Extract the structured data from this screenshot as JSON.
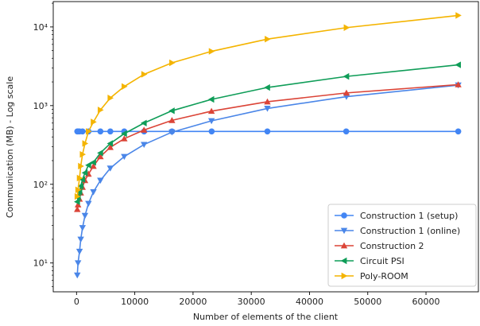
{
  "chart_data": {
    "type": "line",
    "xlabel": "Number of elements of the client",
    "ylabel": "Communication (MB) - Log scale",
    "yscale": "log",
    "xlim": [
      -4000,
      69000
    ],
    "ylim": [
      4.3,
      21000
    ],
    "xticks": [
      0,
      10000,
      20000,
      30000,
      40000,
      50000,
      60000
    ],
    "xtick_labels": [
      "0",
      "10000",
      "20000",
      "30000",
      "40000",
      "50000",
      "60000"
    ],
    "yticks": [
      10,
      100,
      1000,
      10000
    ],
    "ytick_labels": [
      "10¹",
      "10²",
      "10³",
      "10⁴"
    ],
    "legend_position": "lower-right",
    "grid": false,
    "series": [
      {
        "name": "Construction 1 (setup)",
        "color": "#4285f4",
        "marker": "circle",
        "x": [
          128,
          256,
          512,
          1024,
          2048,
          4096,
          5800,
          8192,
          11600,
          16384,
          23200,
          32768,
          46300,
          65536
        ],
        "y": [
          470,
          470,
          470,
          470,
          470,
          470,
          470,
          470,
          470,
          470,
          470,
          470,
          470,
          470
        ]
      },
      {
        "name": "Construction 1 (online)",
        "color": "#4a86e8",
        "marker": "triangle-down",
        "x": [
          128,
          256,
          512,
          724,
          1024,
          1448,
          2048,
          2896,
          4096,
          5792,
          8192,
          11585,
          16384,
          23170,
          32768,
          46341,
          65536
        ],
        "y": [
          7,
          10,
          14,
          20,
          28,
          40,
          57,
          80,
          112,
          160,
          225,
          320,
          460,
          640,
          920,
          1300,
          1820
        ]
      },
      {
        "name": "Construction 2",
        "color": "#db4437",
        "marker": "triangle-up",
        "x": [
          128,
          256,
          512,
          724,
          1024,
          1448,
          2048,
          2896,
          4096,
          5792,
          8192,
          11585,
          16384,
          23170,
          32768,
          46341,
          65536
        ],
        "y": [
          48,
          55,
          65,
          78,
          92,
          112,
          135,
          170,
          225,
          295,
          380,
          490,
          650,
          850,
          1120,
          1450,
          1850
        ]
      },
      {
        "name": "Circuit PSI",
        "color": "#0f9d58",
        "marker": "triangle-left",
        "x": [
          128,
          256,
          512,
          724,
          1024,
          1448,
          2048,
          2896,
          4096,
          5792,
          8192,
          11585,
          16384,
          23170,
          32768,
          46341,
          65536
        ],
        "y": [
          60,
          68,
          80,
          95,
          115,
          140,
          175,
          190,
          250,
          330,
          440,
          600,
          860,
          1200,
          1700,
          2350,
          3300
        ]
      },
      {
        "name": "Poly-ROOM",
        "color": "#f4b400",
        "marker": "triangle-right",
        "x": [
          128,
          256,
          512,
          724,
          1024,
          1448,
          2048,
          2896,
          4096,
          5792,
          8192,
          11585,
          16384,
          23170,
          32768,
          46341,
          65536
        ],
        "y": [
          70,
          85,
          120,
          170,
          240,
          330,
          470,
          620,
          880,
          1250,
          1750,
          2500,
          3500,
          4900,
          7000,
          9800,
          14000
        ]
      }
    ]
  }
}
